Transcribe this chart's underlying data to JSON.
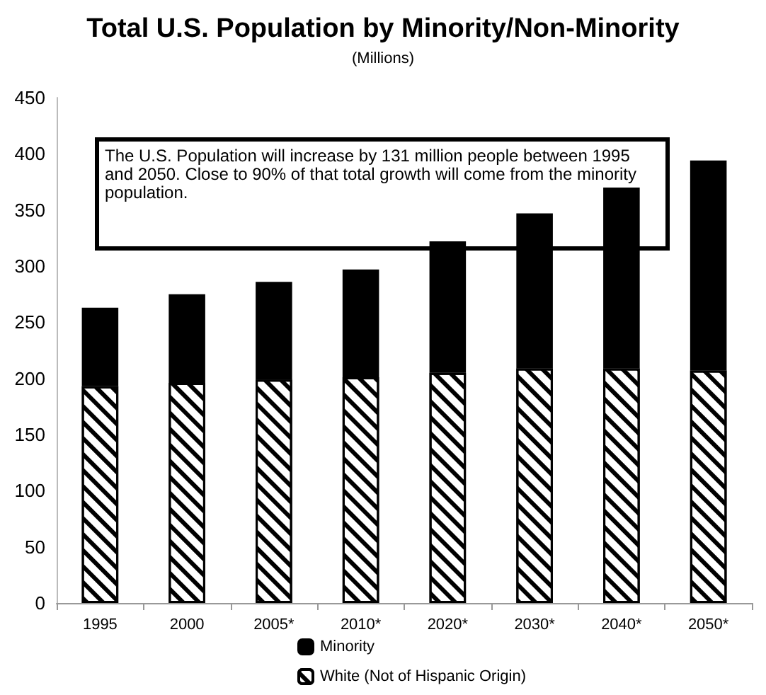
{
  "chart_data": {
    "type": "bar",
    "title": "Total U.S. Population by Minority/Non-Minority",
    "subtitle": "(Millions)",
    "categories": [
      "1995",
      "2000",
      "2005*",
      "2010*",
      "2020*",
      "2030*",
      "2040*",
      "2050*"
    ],
    "series": [
      {
        "name": "White (Not of Hispanic Origin)",
        "color": "#ffffff",
        "values": [
          193,
          196,
          199,
          201,
          205,
          209,
          209,
          207
        ]
      },
      {
        "name": "Minority",
        "color": "#000000",
        "values": [
          70,
          79,
          87,
          96,
          117,
          138,
          161,
          187
        ]
      }
    ],
    "stacked": true,
    "ylim": [
      0,
      450
    ],
    "yticks": [
      0,
      50,
      100,
      150,
      200,
      250,
      300,
      350,
      400,
      450
    ],
    "grid": false,
    "legend": "bottom left",
    "annotations": [
      "The U.S. Population will increase by 131 million people between 1995 and 2050.  Close to 90% of that total growth will come from the minority population."
    ]
  }
}
